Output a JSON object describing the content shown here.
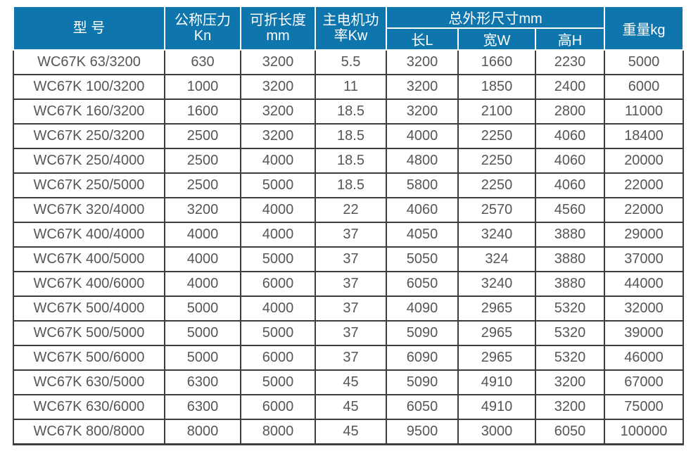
{
  "colors": {
    "header_bg": "#0E76AD",
    "header_text": "#FFFFFF",
    "body_text": "#55565A",
    "grid_line": "#3E3E3E",
    "page_bg": "#FFFFFF"
  },
  "table": {
    "header": {
      "model": "型 号",
      "pressure_l1": "公称压力",
      "pressure_l2": "Kn",
      "fold_length_l1": "可折长度",
      "fold_length_l2": "mm",
      "motor_power_l1": "主电机功",
      "motor_power_l2": "率Kw",
      "overall_dims": "总外形尺寸mm",
      "dim_length": "长L",
      "dim_width": "宽W",
      "dim_height": "高H",
      "weight": "重量kg"
    },
    "columns_keys": [
      "model",
      "pressure-kn",
      "fold-length-mm",
      "motor-power-kw",
      "length-l",
      "width-w",
      "height-h",
      "weight-kg"
    ],
    "rows": [
      [
        "WC67K 63/3200",
        "630",
        "3200",
        "5.5",
        "3200",
        "1660",
        "2230",
        "5000"
      ],
      [
        "WC67K 100/3200",
        "1000",
        "3200",
        "11",
        "3200",
        "1850",
        "2400",
        "6000"
      ],
      [
        "WC67K 160/3200",
        "1600",
        "3200",
        "18.5",
        "3200",
        "2100",
        "2800",
        "11000"
      ],
      [
        "WC67K 250/3200",
        "2500",
        "3200",
        "18.5",
        "4000",
        "2250",
        "4060",
        "18400"
      ],
      [
        "WC67K 250/4000",
        "2500",
        "4000",
        "18.5",
        "4800",
        "2250",
        "4060",
        "20000"
      ],
      [
        "WC67K 250/5000",
        "2500",
        "5000",
        "18.5",
        "5800",
        "2250",
        "4060",
        "22000"
      ],
      [
        "WC67K 320/4000",
        "3200",
        "4000",
        "22",
        "4060",
        "2570",
        "4560",
        "22000"
      ],
      [
        "WC67K 400/4000",
        "4000",
        "4000",
        "37",
        "4050",
        "3240",
        "3880",
        "29000"
      ],
      [
        "WC67K 400/5000",
        "4000",
        "5000",
        "37",
        "5050",
        "324",
        "3880",
        "37000"
      ],
      [
        "WC67K 400/6000",
        "4000",
        "6000",
        "37",
        "6050",
        "3240",
        "3880",
        "44000"
      ],
      [
        "WC67K 500/4000",
        "5000",
        "4000",
        "37",
        "4090",
        "2965",
        "5320",
        "32000"
      ],
      [
        "WC67K 500/5000",
        "5000",
        "5000",
        "37",
        "5090",
        "2965",
        "5320",
        "39000"
      ],
      [
        "WC67K 500/6000",
        "5000",
        "6000",
        "37",
        "6090",
        "2965",
        "5320",
        "46000"
      ],
      [
        "WC67K 630/5000",
        "6300",
        "5000",
        "45",
        "5090",
        "4910",
        "3200",
        "67000"
      ],
      [
        "WC67K 630/6000",
        "6300",
        "6000",
        "45",
        "6050",
        "4910",
        "3200",
        "75000"
      ],
      [
        "WC67K 800/8000",
        "8000",
        "8000",
        "45",
        "9500",
        "3000",
        "6050",
        "100000"
      ]
    ]
  }
}
